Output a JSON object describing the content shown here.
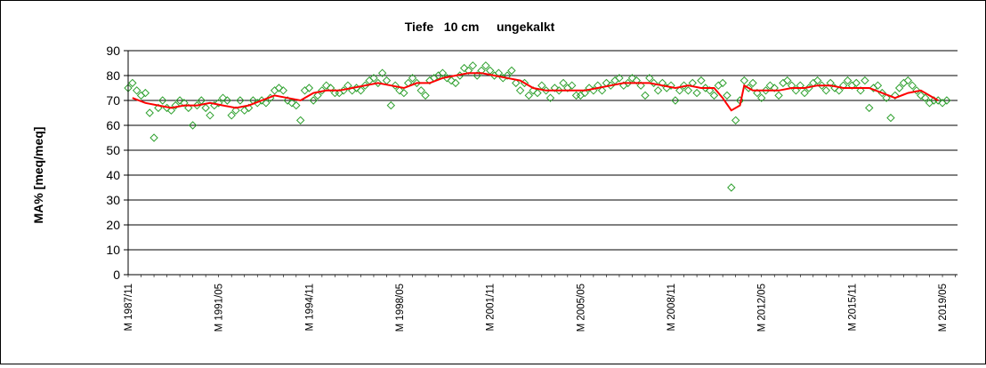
{
  "chart_data": {
    "type": "scatter",
    "title": "Tiefe   10 cm     ungekalkt",
    "ylabel": "MA% [meq/meq]",
    "xlabel": "",
    "ylim": [
      0,
      90
    ],
    "yticks": [
      0,
      10,
      20,
      30,
      40,
      50,
      60,
      70,
      80,
      90
    ],
    "xlim": [
      "1987-11",
      "2019-12"
    ],
    "xtick_labels": [
      {
        "label": "M 1987/11",
        "date": "1987-11"
      },
      {
        "label": "M 1991/05",
        "date": "1991-05"
      },
      {
        "label": "M 1994/11",
        "date": "1994-11"
      },
      {
        "label": "M 1998/05",
        "date": "1998-05"
      },
      {
        "label": "M 2001/11",
        "date": "2001-11"
      },
      {
        "label": "M 2005/05",
        "date": "2005-05"
      },
      {
        "label": "M 2008/11",
        "date": "2008-11"
      },
      {
        "label": "M 2012/05",
        "date": "2012-05"
      },
      {
        "label": "M 2015/11",
        "date": "2015-11"
      },
      {
        "label": "M 2019/05",
        "date": "2019-05"
      }
    ],
    "grid": {
      "horizontal": true,
      "vertical": false
    },
    "legend": "none",
    "series": [
      {
        "marker": "open-diamond",
        "color": "#2ea02e",
        "points": [
          [
            "1987-11",
            75
          ],
          [
            "1988-01",
            77
          ],
          [
            "1988-03",
            74
          ],
          [
            "1988-05",
            72
          ],
          [
            "1988-07",
            73
          ],
          [
            "1988-09",
            65
          ],
          [
            "1988-11",
            55
          ],
          [
            "1989-01",
            67
          ],
          [
            "1989-03",
            70
          ],
          [
            "1989-05",
            67
          ],
          [
            "1989-07",
            66
          ],
          [
            "1989-09",
            68
          ],
          [
            "1989-11",
            70
          ],
          [
            "1990-01",
            69
          ],
          [
            "1990-03",
            67
          ],
          [
            "1990-05",
            60
          ],
          [
            "1990-07",
            68
          ],
          [
            "1990-09",
            70
          ],
          [
            "1990-11",
            67
          ],
          [
            "1991-01",
            64
          ],
          [
            "1991-03",
            68
          ],
          [
            "1991-05",
            69
          ],
          [
            "1991-07",
            71
          ],
          [
            "1991-09",
            70
          ],
          [
            "1991-11",
            64
          ],
          [
            "1992-01",
            66
          ],
          [
            "1992-03",
            70
          ],
          [
            "1992-05",
            66
          ],
          [
            "1992-07",
            67
          ],
          [
            "1992-09",
            70
          ],
          [
            "1992-11",
            69
          ],
          [
            "1993-01",
            70
          ],
          [
            "1993-03",
            69
          ],
          [
            "1993-05",
            71
          ],
          [
            "1993-07",
            74
          ],
          [
            "1993-09",
            75
          ],
          [
            "1993-11",
            74
          ],
          [
            "1994-01",
            70
          ],
          [
            "1994-03",
            69
          ],
          [
            "1994-05",
            68
          ],
          [
            "1994-07",
            62
          ],
          [
            "1994-09",
            74
          ],
          [
            "1994-11",
            75
          ],
          [
            "1995-01",
            70
          ],
          [
            "1995-03",
            72
          ],
          [
            "1995-05",
            74
          ],
          [
            "1995-07",
            76
          ],
          [
            "1995-09",
            75
          ],
          [
            "1995-11",
            73
          ],
          [
            "1996-01",
            73
          ],
          [
            "1996-03",
            74
          ],
          [
            "1996-05",
            76
          ],
          [
            "1996-07",
            74
          ],
          [
            "1996-09",
            75
          ],
          [
            "1996-11",
            74
          ],
          [
            "1997-01",
            76
          ],
          [
            "1997-03",
            78
          ],
          [
            "1997-05",
            79
          ],
          [
            "1997-07",
            77
          ],
          [
            "1997-09",
            81
          ],
          [
            "1997-11",
            78
          ],
          [
            "1998-01",
            68
          ],
          [
            "1998-03",
            76
          ],
          [
            "1998-05",
            74
          ],
          [
            "1998-07",
            73
          ],
          [
            "1998-09",
            77
          ],
          [
            "1998-11",
            79
          ],
          [
            "1999-01",
            77
          ],
          [
            "1999-03",
            74
          ],
          [
            "1999-05",
            72
          ],
          [
            "1999-07",
            78
          ],
          [
            "1999-09",
            79
          ],
          [
            "1999-11",
            80
          ],
          [
            "2000-01",
            81
          ],
          [
            "2000-03",
            79
          ],
          [
            "2000-05",
            78
          ],
          [
            "2000-07",
            77
          ],
          [
            "2000-09",
            80
          ],
          [
            "2000-11",
            83
          ],
          [
            "2001-01",
            82
          ],
          [
            "2001-03",
            84
          ],
          [
            "2001-05",
            80
          ],
          [
            "2001-07",
            82
          ],
          [
            "2001-09",
            84
          ],
          [
            "2001-11",
            82
          ],
          [
            "2002-01",
            80
          ],
          [
            "2002-03",
            81
          ],
          [
            "2002-05",
            79
          ],
          [
            "2002-07",
            80
          ],
          [
            "2002-09",
            82
          ],
          [
            "2002-11",
            77
          ],
          [
            "2003-01",
            74
          ],
          [
            "2003-03",
            77
          ],
          [
            "2003-05",
            72
          ],
          [
            "2003-07",
            74
          ],
          [
            "2003-09",
            73
          ],
          [
            "2003-11",
            76
          ],
          [
            "2004-01",
            74
          ],
          [
            "2004-03",
            71
          ],
          [
            "2004-05",
            75
          ],
          [
            "2004-07",
            74
          ],
          [
            "2004-09",
            77
          ],
          [
            "2004-11",
            75
          ],
          [
            "2005-01",
            76
          ],
          [
            "2005-03",
            72
          ],
          [
            "2005-05",
            72
          ],
          [
            "2005-07",
            73
          ],
          [
            "2005-09",
            75
          ],
          [
            "2005-11",
            74
          ],
          [
            "2006-01",
            76
          ],
          [
            "2006-03",
            74
          ],
          [
            "2006-05",
            77
          ],
          [
            "2006-07",
            76
          ],
          [
            "2006-09",
            78
          ],
          [
            "2006-11",
            79
          ],
          [
            "2007-01",
            76
          ],
          [
            "2007-03",
            77
          ],
          [
            "2007-05",
            79
          ],
          [
            "2007-07",
            78
          ],
          [
            "2007-09",
            76
          ],
          [
            "2007-11",
            72
          ],
          [
            "2008-01",
            79
          ],
          [
            "2008-03",
            77
          ],
          [
            "2008-05",
            74
          ],
          [
            "2008-07",
            77
          ],
          [
            "2008-09",
            75
          ],
          [
            "2008-11",
            76
          ],
          [
            "2009-01",
            70
          ],
          [
            "2009-03",
            74
          ],
          [
            "2009-05",
            76
          ],
          [
            "2009-07",
            74
          ],
          [
            "2009-09",
            77
          ],
          [
            "2009-11",
            73
          ],
          [
            "2010-01",
            78
          ],
          [
            "2010-03",
            75
          ],
          [
            "2010-05",
            74
          ],
          [
            "2010-07",
            72
          ],
          [
            "2010-09",
            76
          ],
          [
            "2010-11",
            77
          ],
          [
            "2011-01",
            72
          ],
          [
            "2011-03",
            35
          ],
          [
            "2011-05",
            62
          ],
          [
            "2011-07",
            70
          ],
          [
            "2011-09",
            78
          ],
          [
            "2011-11",
            75
          ],
          [
            "2012-01",
            77
          ],
          [
            "2012-03",
            73
          ],
          [
            "2012-05",
            71
          ],
          [
            "2012-07",
            74
          ],
          [
            "2012-09",
            76
          ],
          [
            "2012-11",
            75
          ],
          [
            "2013-01",
            72
          ],
          [
            "2013-03",
            77
          ],
          [
            "2013-05",
            78
          ],
          [
            "2013-07",
            76
          ],
          [
            "2013-09",
            74
          ],
          [
            "2013-11",
            76
          ],
          [
            "2014-01",
            73
          ],
          [
            "2014-03",
            75
          ],
          [
            "2014-05",
            77
          ],
          [
            "2014-07",
            78
          ],
          [
            "2014-09",
            76
          ],
          [
            "2014-11",
            74
          ],
          [
            "2015-01",
            77
          ],
          [
            "2015-03",
            75
          ],
          [
            "2015-05",
            74
          ],
          [
            "2015-07",
            76
          ],
          [
            "2015-09",
            78
          ],
          [
            "2015-11",
            76
          ],
          [
            "2016-01",
            77
          ],
          [
            "2016-03",
            74
          ],
          [
            "2016-05",
            78
          ],
          [
            "2016-07",
            67
          ],
          [
            "2016-09",
            75
          ],
          [
            "2016-11",
            76
          ],
          [
            "2017-01",
            73
          ],
          [
            "2017-03",
            71
          ],
          [
            "2017-05",
            63
          ],
          [
            "2017-07",
            72
          ],
          [
            "2017-09",
            75
          ],
          [
            "2017-11",
            77
          ],
          [
            "2018-01",
            78
          ],
          [
            "2018-03",
            76
          ],
          [
            "2018-05",
            74
          ],
          [
            "2018-07",
            72
          ],
          [
            "2018-09",
            71
          ],
          [
            "2018-11",
            69
          ],
          [
            "2019-01",
            70
          ],
          [
            "2019-03",
            70
          ],
          [
            "2019-05",
            69
          ],
          [
            "2019-07",
            70
          ]
        ]
      },
      {
        "marker": "line",
        "color": "#ff0000",
        "points": [
          [
            "1988-01",
            71
          ],
          [
            "1988-07",
            69
          ],
          [
            "1989-01",
            68
          ],
          [
            "1989-07",
            67
          ],
          [
            "1990-01",
            68
          ],
          [
            "1990-07",
            68
          ],
          [
            "1991-01",
            69
          ],
          [
            "1991-07",
            68
          ],
          [
            "1992-01",
            67
          ],
          [
            "1992-07",
            68
          ],
          [
            "1993-01",
            70
          ],
          [
            "1993-07",
            72
          ],
          [
            "1994-01",
            71
          ],
          [
            "1994-07",
            70
          ],
          [
            "1995-01",
            73
          ],
          [
            "1995-07",
            74
          ],
          [
            "1996-01",
            74
          ],
          [
            "1996-07",
            75
          ],
          [
            "1997-01",
            76
          ],
          [
            "1997-07",
            77
          ],
          [
            "1998-01",
            76
          ],
          [
            "1998-07",
            75
          ],
          [
            "1999-01",
            77
          ],
          [
            "1999-07",
            77
          ],
          [
            "2000-01",
            79
          ],
          [
            "2000-07",
            80
          ],
          [
            "2001-01",
            81
          ],
          [
            "2001-07",
            81
          ],
          [
            "2002-01",
            80
          ],
          [
            "2002-07",
            79
          ],
          [
            "2003-01",
            78
          ],
          [
            "2003-07",
            75
          ],
          [
            "2004-01",
            74
          ],
          [
            "2004-07",
            74
          ],
          [
            "2005-01",
            74
          ],
          [
            "2005-07",
            74
          ],
          [
            "2006-01",
            75
          ],
          [
            "2006-07",
            76
          ],
          [
            "2007-01",
            77
          ],
          [
            "2007-07",
            77
          ],
          [
            "2008-01",
            77
          ],
          [
            "2008-07",
            76
          ],
          [
            "2009-01",
            75
          ],
          [
            "2009-07",
            76
          ],
          [
            "2010-01",
            75
          ],
          [
            "2010-07",
            75
          ],
          [
            "2010-11",
            71
          ],
          [
            "2011-03",
            66
          ],
          [
            "2011-07",
            68
          ],
          [
            "2011-09",
            76
          ],
          [
            "2012-01",
            74
          ],
          [
            "2012-07",
            74
          ],
          [
            "2013-01",
            74
          ],
          [
            "2013-07",
            75
          ],
          [
            "2014-01",
            75
          ],
          [
            "2014-07",
            76
          ],
          [
            "2015-01",
            76
          ],
          [
            "2015-07",
            75
          ],
          [
            "2016-01",
            75
          ],
          [
            "2016-07",
            75
          ],
          [
            "2017-01",
            73
          ],
          [
            "2017-07",
            71
          ],
          [
            "2018-01",
            73
          ],
          [
            "2018-07",
            74
          ],
          [
            "2019-01",
            71
          ],
          [
            "2019-03",
            70
          ]
        ]
      }
    ]
  }
}
